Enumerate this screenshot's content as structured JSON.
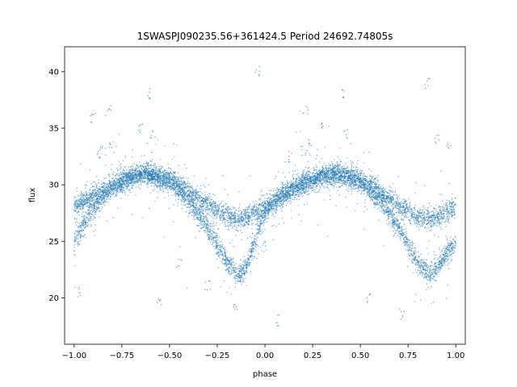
{
  "chart_data": {
    "type": "scatter",
    "title": "1SWASPJ090235.56+361424.5 Period 24692.74805s",
    "xlabel": "phase",
    "ylabel": "flux",
    "xlim": [
      -1.05,
      1.05
    ],
    "ylim": [
      15.9,
      42.2
    ],
    "xticks": [
      -1.0,
      -0.75,
      -0.5,
      -0.25,
      0.0,
      0.25,
      0.5,
      0.75,
      1.0
    ],
    "xtick_labels": [
      "−1.00",
      "−0.75",
      "−0.50",
      "−0.25",
      "0.00",
      "0.25",
      "0.50",
      "0.75",
      "1.00"
    ],
    "yticks": [
      20,
      25,
      30,
      35,
      40
    ],
    "ytick_labels": [
      "20",
      "25",
      "30",
      "35",
      "40"
    ],
    "grid": false,
    "legend": "none",
    "marker_color": "#1f77b4",
    "series": [
      {
        "branch": "upper",
        "x": [
          -1.0,
          -0.9,
          -0.8,
          -0.7,
          -0.62,
          -0.5,
          -0.4,
          -0.3,
          -0.2,
          -0.14,
          -0.1,
          0.0,
          0.1,
          0.2,
          0.3,
          0.38,
          0.5,
          0.6,
          0.7,
          0.8,
          0.86,
          0.9,
          1.0
        ],
        "y": [
          28.0,
          29.0,
          30.0,
          30.8,
          31.0,
          30.6,
          29.4,
          28.2,
          27.2,
          26.9,
          27.1,
          28.0,
          29.0,
          30.0,
          30.8,
          31.0,
          30.6,
          29.4,
          28.2,
          27.2,
          26.9,
          27.1,
          28.0
        ]
      },
      {
        "branch": "lower",
        "x": [
          -1.0,
          -0.9,
          -0.8,
          -0.7,
          -0.62,
          -0.5,
          -0.4,
          -0.3,
          -0.2,
          -0.14,
          -0.1,
          0.0,
          0.1,
          0.2,
          0.3,
          0.38,
          0.5,
          0.6,
          0.7,
          0.8,
          0.86,
          0.9,
          1.0
        ],
        "y": [
          25.0,
          28.0,
          29.8,
          30.6,
          31.0,
          30.2,
          28.6,
          26.2,
          23.2,
          22.0,
          22.6,
          27.6,
          29.4,
          30.2,
          30.8,
          31.0,
          30.2,
          28.6,
          26.2,
          23.2,
          22.0,
          22.6,
          25.0
        ]
      },
      {
        "branch": "outliers",
        "x": [
          -0.85,
          -0.8,
          -0.87,
          0.23,
          0.2,
          0.13,
          -0.82,
          0.21,
          -0.59,
          0.42,
          -0.6,
          0.41,
          -0.04,
          0.85,
          -0.65,
          0.3,
          0.96,
          -0.98,
          -0.55,
          0.55,
          0.06,
          -0.3,
          -0.15,
          0.72,
          -0.9,
          0.9,
          0.0,
          -0.45
        ],
        "y": [
          33.0,
          33.5,
          32.8,
          33.5,
          33.0,
          32.5,
          36.5,
          36.5,
          34.5,
          34.5,
          38.0,
          38.0,
          40.0,
          39.0,
          35.0,
          35.5,
          33.5,
          20.5,
          19.5,
          20.0,
          18.0,
          21.0,
          19.0,
          18.5,
          36.0,
          34.0,
          24.5,
          23.0
        ]
      }
    ]
  }
}
